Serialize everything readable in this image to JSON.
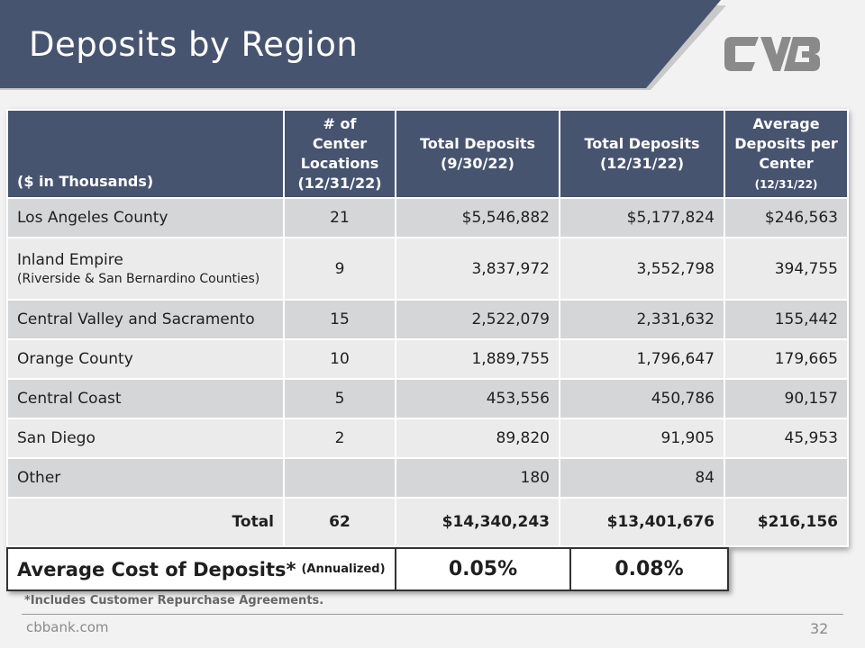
{
  "header": {
    "title": "Deposits by Region"
  },
  "logo": {
    "icon": "cvb-logo-icon",
    "color": "#8a8a8a"
  },
  "table": {
    "columns": [
      {
        "label": "($ in Thousands)"
      },
      {
        "label": "# of Center Locations (12/31/22)"
      },
      {
        "label": "Total Deposits (9/30/22)"
      },
      {
        "label": "Total Deposits (12/31/22)"
      },
      {
        "label": "Average Deposits per Center",
        "note": "(12/31/22)"
      }
    ],
    "rows": [
      {
        "region": "Los Angeles County",
        "sub": "",
        "centers": "21",
        "dep_sep": "$5,546,882",
        "dep_dec": "$5,177,824",
        "avg": "$246,563"
      },
      {
        "region": "Inland Empire",
        "sub": "(Riverside & San Bernardino Counties)",
        "centers": "9",
        "dep_sep": "3,837,972",
        "dep_dec": "3,552,798",
        "avg": "394,755"
      },
      {
        "region": "Central Valley and Sacramento",
        "sub": "",
        "centers": "15",
        "dep_sep": "2,522,079",
        "dep_dec": "2,331,632",
        "avg": "155,442"
      },
      {
        "region": "Orange County",
        "sub": "",
        "centers": "10",
        "dep_sep": "1,889,755",
        "dep_dec": "1,796,647",
        "avg": "179,665"
      },
      {
        "region": "Central Coast",
        "sub": "",
        "centers": "5",
        "dep_sep": "453,556",
        "dep_dec": "450,786",
        "avg": "90,157"
      },
      {
        "region": "San Diego",
        "sub": "",
        "centers": "2",
        "dep_sep": "89,820",
        "dep_dec": "91,905",
        "avg": "45,953"
      },
      {
        "region": "Other",
        "sub": "",
        "centers": "",
        "dep_sep": "180",
        "dep_dec": "84",
        "avg": ""
      }
    ],
    "total": {
      "label": "Total",
      "centers": "62",
      "dep_sep": "$14,340,243",
      "dep_dec": "$13,401,676",
      "avg": "$216,156"
    }
  },
  "cost": {
    "label": "Average Cost of Deposits*",
    "note": "(Annualized)",
    "value_sep": "0.05%",
    "value_dec": "0.08%"
  },
  "footnote": "*Includes Customer Repurchase Agreements.",
  "footer": {
    "site": "cbbank.com",
    "page": "32"
  },
  "colors": {
    "header_bg": "#47546f",
    "row_dark": "#d5d6d8",
    "row_light": "#ebebec"
  }
}
